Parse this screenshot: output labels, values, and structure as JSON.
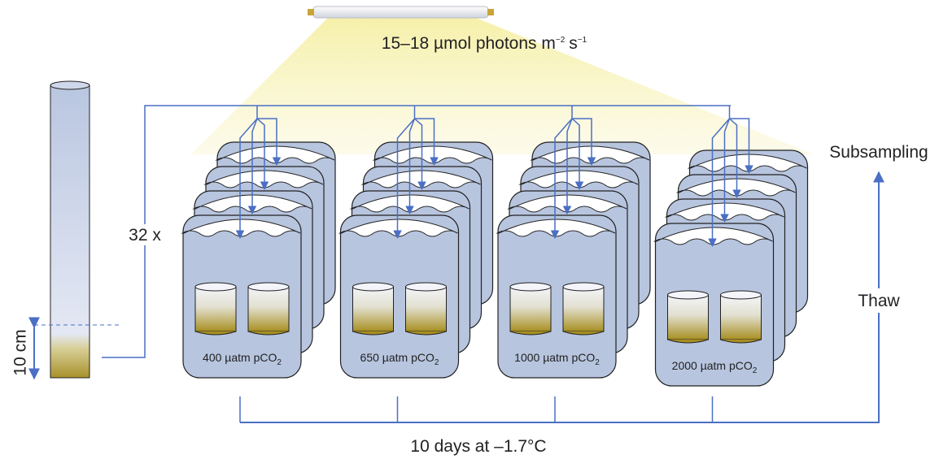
{
  "light": {
    "parts": [
      "15–18 µmol photons m",
      "−2",
      "s",
      "−1"
    ]
  },
  "core": {
    "depth": "10 cm",
    "replicates": "32 x"
  },
  "tanks": [
    {
      "label": "400 µatm pCO",
      "subscript": "2"
    },
    {
      "label": "650 µatm pCO",
      "subscript": "2"
    },
    {
      "label": "1000 µatm pCO",
      "subscript": "2"
    },
    {
      "label": "2000 µatm pCO",
      "subscript": "2"
    }
  ],
  "incubation": "10 days at –1.7°C",
  "steps": {
    "thaw": "Thaw",
    "subsampling": "Subsampling"
  }
}
